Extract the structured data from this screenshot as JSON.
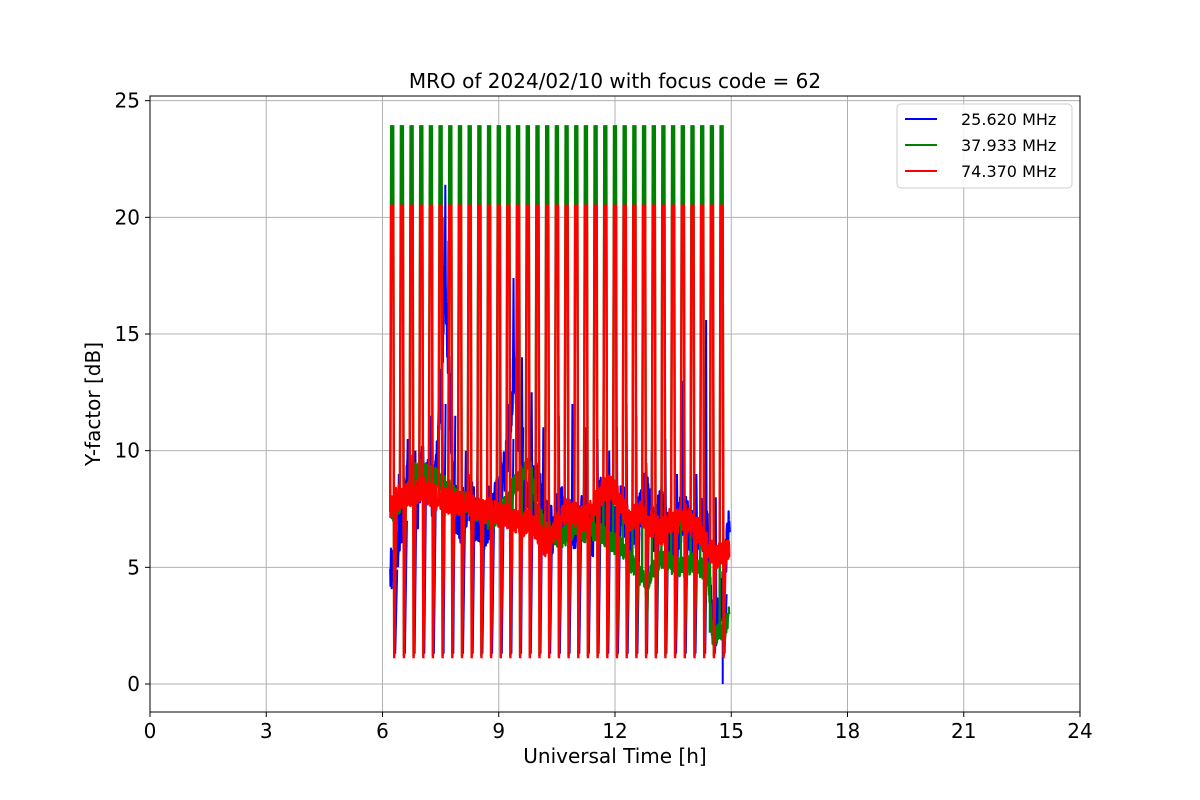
{
  "chart_data": {
    "type": "line",
    "title": "MRO of 2024/02/10 with focus code = 62",
    "xlabel": "Universal Time [h]",
    "ylabel": "Y-factor [dB]",
    "xlim": [
      0,
      24
    ],
    "ylim": [
      -1.2,
      25.2
    ],
    "xticks": [
      0,
      3,
      6,
      9,
      12,
      15,
      18,
      21,
      24
    ],
    "yticks": [
      0,
      5,
      10,
      15,
      20,
      25
    ],
    "grid": true,
    "legend_position": "top-right",
    "series": [
      {
        "name": "25.620 MHz",
        "color": "#0000ff",
        "baseline": [
          [
            6.2,
            4.6
          ],
          [
            6.3,
            5.2
          ],
          [
            6.4,
            5.8
          ],
          [
            6.5,
            7.0
          ],
          [
            6.6,
            8.5
          ],
          [
            6.7,
            9.2
          ],
          [
            6.8,
            8.0
          ],
          [
            6.9,
            7.5
          ],
          [
            7.0,
            9.5
          ],
          [
            7.1,
            8.2
          ],
          [
            7.2,
            9.0
          ],
          [
            7.3,
            7.8
          ],
          [
            7.4,
            9.8
          ],
          [
            7.5,
            12.0
          ],
          [
            7.6,
            17.0
          ],
          [
            7.7,
            14.0
          ],
          [
            7.8,
            9.0
          ],
          [
            7.9,
            7.5
          ],
          [
            8.0,
            7.0
          ],
          [
            8.2,
            8.0
          ],
          [
            8.4,
            7.2
          ],
          [
            8.6,
            6.8
          ],
          [
            8.8,
            7.2
          ],
          [
            9.0,
            8.0
          ],
          [
            9.2,
            9.5
          ],
          [
            9.4,
            13.5
          ],
          [
            9.5,
            11.0
          ],
          [
            9.6,
            8.5
          ],
          [
            9.8,
            8.0
          ],
          [
            10.0,
            8.5
          ],
          [
            10.2,
            7.0
          ],
          [
            10.4,
            6.5
          ],
          [
            10.6,
            7.8
          ],
          [
            10.8,
            7.0
          ],
          [
            11.0,
            6.8
          ],
          [
            11.2,
            7.5
          ],
          [
            11.4,
            6.2
          ],
          [
            11.6,
            8.0
          ],
          [
            11.8,
            7.5
          ],
          [
            12.0,
            6.5
          ],
          [
            12.2,
            7.8
          ],
          [
            12.4,
            6.0
          ],
          [
            12.6,
            7.0
          ],
          [
            12.8,
            8.5
          ],
          [
            13.0,
            6.5
          ],
          [
            13.2,
            7.5
          ],
          [
            13.4,
            6.0
          ],
          [
            13.6,
            6.8
          ],
          [
            13.8,
            7.2
          ],
          [
            14.0,
            6.5
          ],
          [
            14.2,
            7.0
          ],
          [
            14.4,
            6.2
          ],
          [
            14.5,
            3.0
          ],
          [
            14.6,
            2.5
          ],
          [
            14.7,
            3.2
          ],
          [
            14.8,
            4.5
          ],
          [
            14.9,
            6.5
          ]
        ],
        "spikes": [
          [
            6.22,
            5.0
          ],
          [
            6.42,
            9.0
          ],
          [
            6.65,
            10.5
          ],
          [
            6.85,
            10.0
          ],
          [
            7.05,
            10.2
          ],
          [
            7.25,
            11.5
          ],
          [
            7.45,
            12.2
          ],
          [
            7.55,
            20.0
          ],
          [
            7.62,
            21.4
          ],
          [
            7.7,
            19.0
          ],
          [
            7.95,
            10.3
          ],
          [
            8.15,
            10.0
          ],
          [
            8.45,
            9.5
          ],
          [
            8.75,
            8.5
          ],
          [
            9.05,
            10.0
          ],
          [
            9.25,
            12.0
          ],
          [
            9.38,
            17.4
          ],
          [
            9.5,
            16.5
          ],
          [
            9.6,
            14.0
          ],
          [
            9.85,
            12.5
          ],
          [
            10.15,
            11.0
          ],
          [
            10.55,
            11.5
          ],
          [
            10.9,
            12.0
          ],
          [
            11.25,
            11.0
          ],
          [
            11.55,
            10.5
          ],
          [
            11.85,
            10.0
          ],
          [
            12.05,
            11.0
          ],
          [
            12.3,
            12.0
          ],
          [
            12.55,
            11.5
          ],
          [
            12.95,
            10.0
          ],
          [
            13.3,
            10.5
          ],
          [
            13.6,
            9.0
          ],
          [
            13.75,
            13.0
          ],
          [
            14.1,
            9.0
          ],
          [
            14.35,
            15.6
          ],
          [
            14.6,
            8.0
          ],
          [
            14.95,
            7.0
          ]
        ],
        "spike_low": 0.0
      },
      {
        "name": "37.933 MHz",
        "color": "#008000",
        "baseline": [
          [
            6.2,
            7.3
          ],
          [
            6.4,
            7.6
          ],
          [
            6.6,
            8.2
          ],
          [
            6.8,
            9.0
          ],
          [
            7.0,
            9.2
          ],
          [
            7.2,
            9.0
          ],
          [
            7.4,
            8.8
          ],
          [
            7.6,
            8.5
          ],
          [
            7.8,
            8.2
          ],
          [
            8.0,
            7.8
          ],
          [
            8.2,
            7.8
          ],
          [
            8.4,
            7.4
          ],
          [
            8.6,
            7.2
          ],
          [
            8.8,
            7.0
          ],
          [
            9.0,
            7.2
          ],
          [
            9.2,
            7.8
          ],
          [
            9.4,
            8.5
          ],
          [
            9.6,
            9.0
          ],
          [
            9.8,
            9.4
          ],
          [
            10.0,
            7.5
          ],
          [
            10.2,
            6.5
          ],
          [
            10.4,
            6.5
          ],
          [
            10.6,
            6.2
          ],
          [
            10.8,
            6.5
          ],
          [
            11.0,
            6.8
          ],
          [
            11.2,
            6.5
          ],
          [
            11.4,
            6.6
          ],
          [
            11.6,
            6.5
          ],
          [
            11.8,
            6.2
          ],
          [
            12.0,
            6.0
          ],
          [
            12.2,
            5.8
          ],
          [
            12.4,
            5.2
          ],
          [
            12.6,
            4.8
          ],
          [
            12.8,
            4.2
          ],
          [
            13.0,
            5.0
          ],
          [
            13.2,
            5.4
          ],
          [
            13.4,
            5.2
          ],
          [
            13.6,
            5.0
          ],
          [
            13.8,
            5.0
          ],
          [
            14.0,
            5.2
          ],
          [
            14.2,
            5.0
          ],
          [
            14.4,
            4.8
          ],
          [
            14.5,
            2.2
          ],
          [
            14.6,
            2.0
          ],
          [
            14.7,
            2.2
          ],
          [
            14.8,
            2.4
          ],
          [
            14.9,
            2.6
          ],
          [
            14.95,
            3.0
          ]
        ],
        "spike_high": 23.9,
        "spike_low": 1.2
      },
      {
        "name": "74.370 MHz",
        "color": "#ff0000",
        "baseline": [
          [
            6.2,
            7.5
          ],
          [
            6.4,
            8.0
          ],
          [
            6.6,
            8.2
          ],
          [
            6.8,
            8.0
          ],
          [
            7.0,
            8.4
          ],
          [
            7.2,
            8.2
          ],
          [
            7.4,
            8.0
          ],
          [
            7.6,
            7.9
          ],
          [
            7.8,
            7.8
          ],
          [
            8.0,
            7.6
          ],
          [
            8.2,
            7.8
          ],
          [
            8.4,
            7.5
          ],
          [
            8.6,
            7.4
          ],
          [
            8.8,
            7.5
          ],
          [
            9.0,
            7.2
          ],
          [
            9.2,
            7.2
          ],
          [
            9.4,
            7.0
          ],
          [
            9.6,
            6.8
          ],
          [
            9.8,
            7.0
          ],
          [
            10.0,
            6.5
          ],
          [
            10.2,
            6.0
          ],
          [
            10.4,
            6.5
          ],
          [
            10.6,
            7.0
          ],
          [
            10.8,
            7.5
          ],
          [
            11.0,
            7.2
          ],
          [
            11.2,
            7.0
          ],
          [
            11.4,
            7.5
          ],
          [
            11.6,
            8.0
          ],
          [
            11.8,
            8.5
          ],
          [
            12.0,
            8.2
          ],
          [
            12.2,
            7.5
          ],
          [
            12.4,
            7.0
          ],
          [
            12.6,
            7.5
          ],
          [
            12.8,
            7.0
          ],
          [
            13.0,
            6.8
          ],
          [
            13.2,
            6.5
          ],
          [
            13.4,
            7.0
          ],
          [
            13.6,
            7.0
          ],
          [
            13.8,
            7.2
          ],
          [
            14.0,
            6.8
          ],
          [
            14.2,
            6.5
          ],
          [
            14.4,
            5.8
          ],
          [
            14.6,
            5.5
          ],
          [
            14.8,
            5.6
          ],
          [
            14.95,
            5.8
          ]
        ],
        "spike_high": 20.5,
        "spike_low": 1.1
      }
    ]
  }
}
